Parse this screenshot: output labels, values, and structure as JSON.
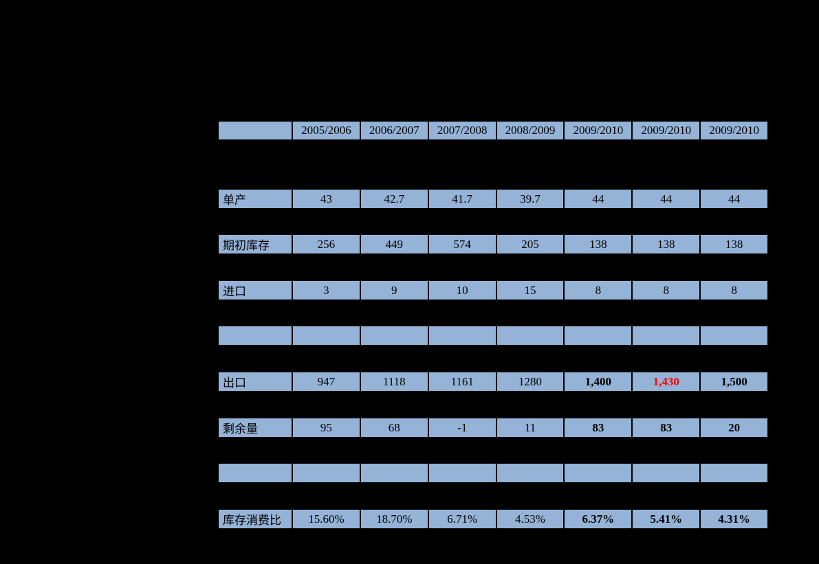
{
  "page": {
    "background_color": "#000000"
  },
  "table": {
    "cell_fill_color": "#95b3d7",
    "border_color": "#000000",
    "text_color": "#000000",
    "highlight_red_color": "#ff0000",
    "header": {
      "corner_label": "",
      "columns": [
        "2005/2006",
        "2006/2007",
        "2007/2008",
        "2008/2009",
        "2009/2010",
        "2009/2010",
        "2009/2010"
      ]
    },
    "rows": [
      {
        "label": "单产",
        "values": [
          "43",
          "42.7",
          "41.7",
          "39.7",
          "44",
          "44",
          "44"
        ]
      },
      {
        "label": "期初库存",
        "values": [
          "256",
          "449",
          "574",
          "205",
          "138",
          "138",
          "138"
        ]
      },
      {
        "label": "进口",
        "values": [
          "3",
          "9",
          "10",
          "15",
          "8",
          "8",
          "8"
        ]
      },
      {
        "label": "",
        "values": [
          "",
          "",
          "",
          "",
          "",
          "",
          ""
        ]
      },
      {
        "label": "出口",
        "values": [
          "947",
          "1118",
          "1161",
          "1280",
          "1,400",
          "1,430",
          "1,500"
        ]
      },
      {
        "label": "剩余量",
        "values": [
          "95",
          "68",
          "-1",
          "11",
          "83",
          "83",
          "20"
        ]
      },
      {
        "label": "",
        "values": [
          "",
          "",
          "",
          "",
          "",
          "",
          ""
        ]
      },
      {
        "label": "库存消费比",
        "values": [
          "15.60%",
          "18.70%",
          "6.71%",
          "4.53%",
          "6.37%",
          "5.41%",
          "4.31%"
        ]
      }
    ]
  }
}
